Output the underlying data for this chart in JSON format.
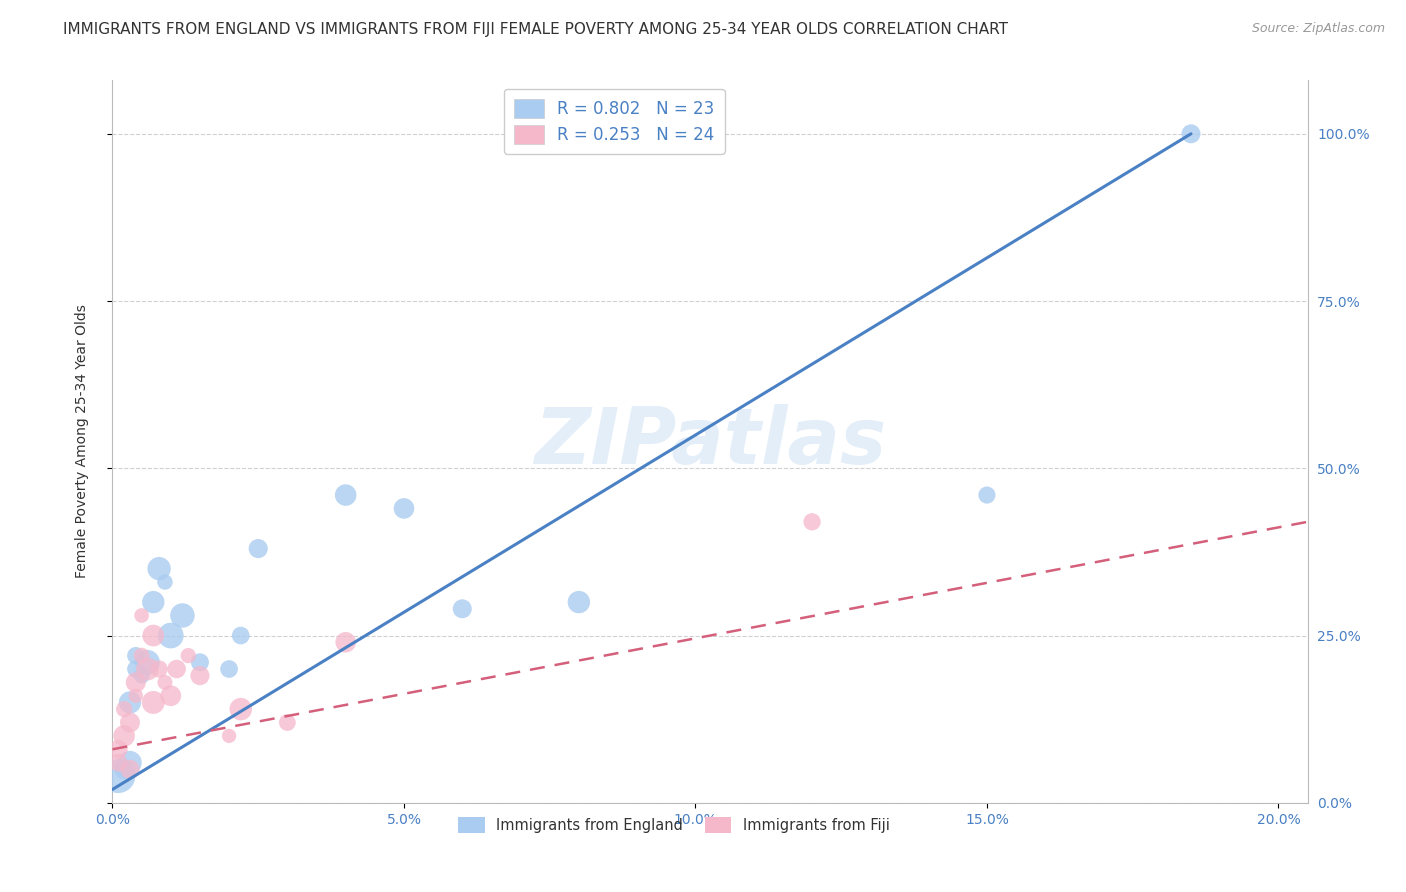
{
  "title": "IMMIGRANTS FROM ENGLAND VS IMMIGRANTS FROM FIJI FEMALE POVERTY AMONG 25-34 YEAR OLDS CORRELATION CHART",
  "source": "Source: ZipAtlas.com",
  "ylabel": "Female Poverty Among 25-34 Year Olds",
  "x_ticks": [
    0.0,
    0.05,
    0.1,
    0.15,
    0.2
  ],
  "x_tick_labels": [
    "0.0%",
    "5.0%",
    "10.0%",
    "15.0%",
    "20.0%"
  ],
  "y_ticks": [
    0.0,
    0.25,
    0.5,
    0.75,
    1.0
  ],
  "y_tick_labels_right": [
    "0.0%",
    "25.0%",
    "50.0%",
    "75.0%",
    "100.0%"
  ],
  "x_range": [
    0.0,
    0.205
  ],
  "y_range": [
    0.0,
    1.08
  ],
  "watermark": "ZIPatlas",
  "england_R": 0.802,
  "england_N": 23,
  "fiji_R": 0.253,
  "fiji_N": 24,
  "england_color": "#aaccf0",
  "fiji_color": "#f5b8cb",
  "england_line_color": "#4a80c4",
  "fiji_line_color": "#d45f7a",
  "background_color": "#ffffff",
  "grid_color": "#d0d0d0",
  "title_fontsize": 11,
  "axis_fontsize": 10,
  "tick_fontsize": 10,
  "legend_fontsize": 12,
  "england_scatter_x": [
    0.001,
    0.002,
    0.003,
    0.003,
    0.004,
    0.004,
    0.005,
    0.006,
    0.007,
    0.008,
    0.009,
    0.01,
    0.012,
    0.015,
    0.02,
    0.022,
    0.025,
    0.04,
    0.05,
    0.06,
    0.08,
    0.15,
    0.185
  ],
  "england_scatter_y": [
    0.04,
    0.05,
    0.06,
    0.15,
    0.2,
    0.22,
    0.19,
    0.21,
    0.3,
    0.35,
    0.33,
    0.25,
    0.28,
    0.21,
    0.2,
    0.25,
    0.38,
    0.46,
    0.44,
    0.29,
    0.3,
    0.46,
    1.0
  ],
  "fiji_scatter_x": [
    0.001,
    0.001,
    0.002,
    0.002,
    0.003,
    0.003,
    0.004,
    0.004,
    0.005,
    0.005,
    0.006,
    0.007,
    0.007,
    0.008,
    0.009,
    0.01,
    0.011,
    0.013,
    0.015,
    0.02,
    0.022,
    0.03,
    0.04,
    0.12
  ],
  "fiji_scatter_y": [
    0.06,
    0.08,
    0.1,
    0.14,
    0.05,
    0.12,
    0.16,
    0.18,
    0.22,
    0.28,
    0.2,
    0.15,
    0.25,
    0.2,
    0.18,
    0.16,
    0.2,
    0.22,
    0.19,
    0.1,
    0.14,
    0.12,
    0.24,
    0.42
  ],
  "england_line_x": [
    0.0,
    0.185
  ],
  "england_line_y": [
    0.02,
    1.0
  ],
  "fiji_line_x": [
    0.0,
    0.205
  ],
  "fiji_line_y": [
    0.08,
    0.42
  ]
}
